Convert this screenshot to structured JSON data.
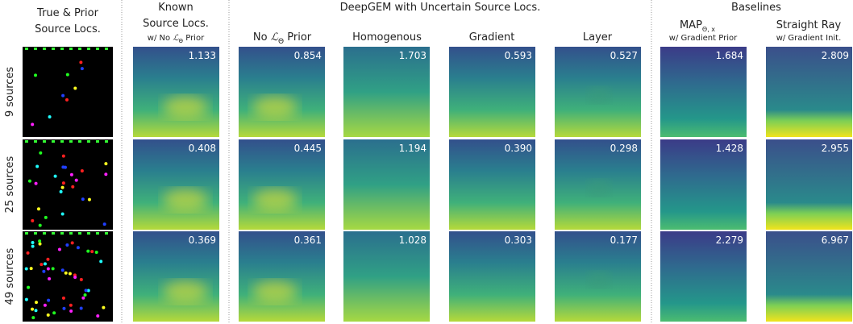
{
  "first_column_title": [
    "True & Prior",
    "Source Locs."
  ],
  "known_column": {
    "title": [
      "Known",
      "Source Locs."
    ],
    "note_prefix": "w/ No ",
    "note_symbol": "ℒ",
    "note_subscript": "Θ",
    "note_suffix": " Prior"
  },
  "group_title": "DeepGEM with Uncertain Source Locs.",
  "no_prior_column": {
    "prefix": "No ",
    "symbol": "ℒ",
    "subscript": "Θ",
    "suffix": " Prior"
  },
  "deepgem_columns": [
    "Homogenous",
    "Gradient",
    "Layer"
  ],
  "baselines_title": "Baselines",
  "map_column": {
    "title": "MAP",
    "subscript": "Θ, x",
    "note": "w/ Gradient Prior"
  },
  "straight_column": {
    "title": "Straight Ray",
    "note": "w/ Gradient Init."
  },
  "rows": [
    {
      "label": "9 sources",
      "scores": [
        "1.133",
        "0.854",
        "1.703",
        "0.593",
        "0.527",
        "1.684",
        "2.809"
      ]
    },
    {
      "label": "25 sources",
      "scores": [
        "0.408",
        "0.445",
        "1.194",
        "0.390",
        "0.298",
        "1.428",
        "2.955"
      ]
    },
    {
      "label": "49 sources",
      "scores": [
        "0.369",
        "0.361",
        "1.028",
        "0.303",
        "0.177",
        "2.279",
        "6.967"
      ]
    }
  ]
}
